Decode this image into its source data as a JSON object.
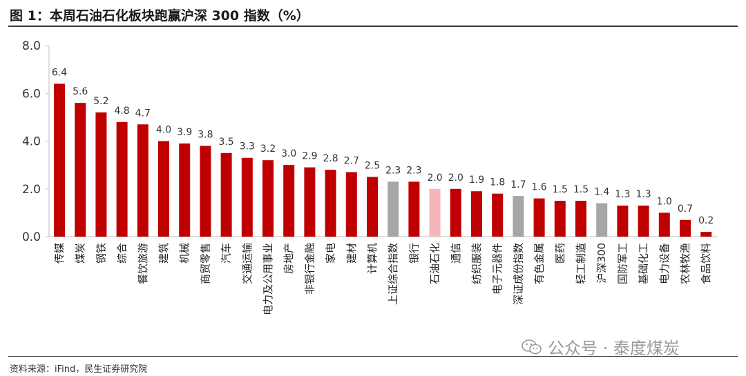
{
  "title": "图 1：本周石油石化板块跑赢沪深 300 指数（%）",
  "source": "资料来源：iFind，民生证券研究院",
  "watermark": "公众号 · 泰度煤炭",
  "colors": {
    "default": "#C00000",
    "benchmark": "#A6A6A6",
    "highlight": "#F4B6B8"
  },
  "chart_data": {
    "type": "bar",
    "title": "图 1：本周石油石化板块跑赢沪深 300 指数（%）",
    "xlabel": "",
    "ylabel": "",
    "ylim": [
      0,
      8
    ],
    "yticks": [
      "0.0",
      "2.0",
      "4.0",
      "6.0",
      "8.0"
    ],
    "grid": false,
    "categories": [
      "传媒",
      "煤炭",
      "钢铁",
      "综合",
      "餐饮旅游",
      "建筑",
      "机械",
      "商贸零售",
      "汽车",
      "交通运输",
      "电力及公用事业",
      "房地产",
      "非银行金融",
      "家电",
      "建材",
      "计算机",
      "上证综合指数",
      "银行",
      "石油石化",
      "通信",
      "纺织服装",
      "电子元器件",
      "深证成份指数",
      "有色金属",
      "医药",
      "轻工制造",
      "沪深300",
      "国防军工",
      "基础化工",
      "电力设备",
      "农林牧渔",
      "食品饮料"
    ],
    "values": [
      6.4,
      5.6,
      5.2,
      4.8,
      4.7,
      4.0,
      3.9,
      3.8,
      3.5,
      3.3,
      3.2,
      3.0,
      2.9,
      2.8,
      2.7,
      2.5,
      2.3,
      2.3,
      2.0,
      2.0,
      1.9,
      1.8,
      1.7,
      1.6,
      1.5,
      1.5,
      1.4,
      1.3,
      1.3,
      1.0,
      0.7,
      0.2
    ],
    "value_labels": [
      "6.4",
      "5.6",
      "5.2",
      "4.8",
      "4.7",
      "4.0",
      "3.9",
      "3.8",
      "3.5",
      "3.3",
      "3.2",
      "3.0",
      "2.9",
      "2.8",
      "2.7",
      "2.5",
      "2.3",
      "2.3",
      "2.0",
      "2.0",
      "1.9",
      "1.8",
      "1.7",
      "1.6",
      "1.5",
      "1.5",
      "1.4",
      "1.3",
      "1.3",
      "1.0",
      "0.7",
      "0.2"
    ],
    "bar_colors": [
      "default",
      "default",
      "default",
      "default",
      "default",
      "default",
      "default",
      "default",
      "default",
      "default",
      "default",
      "default",
      "default",
      "default",
      "default",
      "default",
      "benchmark",
      "default",
      "highlight",
      "default",
      "default",
      "default",
      "benchmark",
      "default",
      "default",
      "default",
      "benchmark",
      "default",
      "default",
      "default",
      "default",
      "default"
    ]
  }
}
